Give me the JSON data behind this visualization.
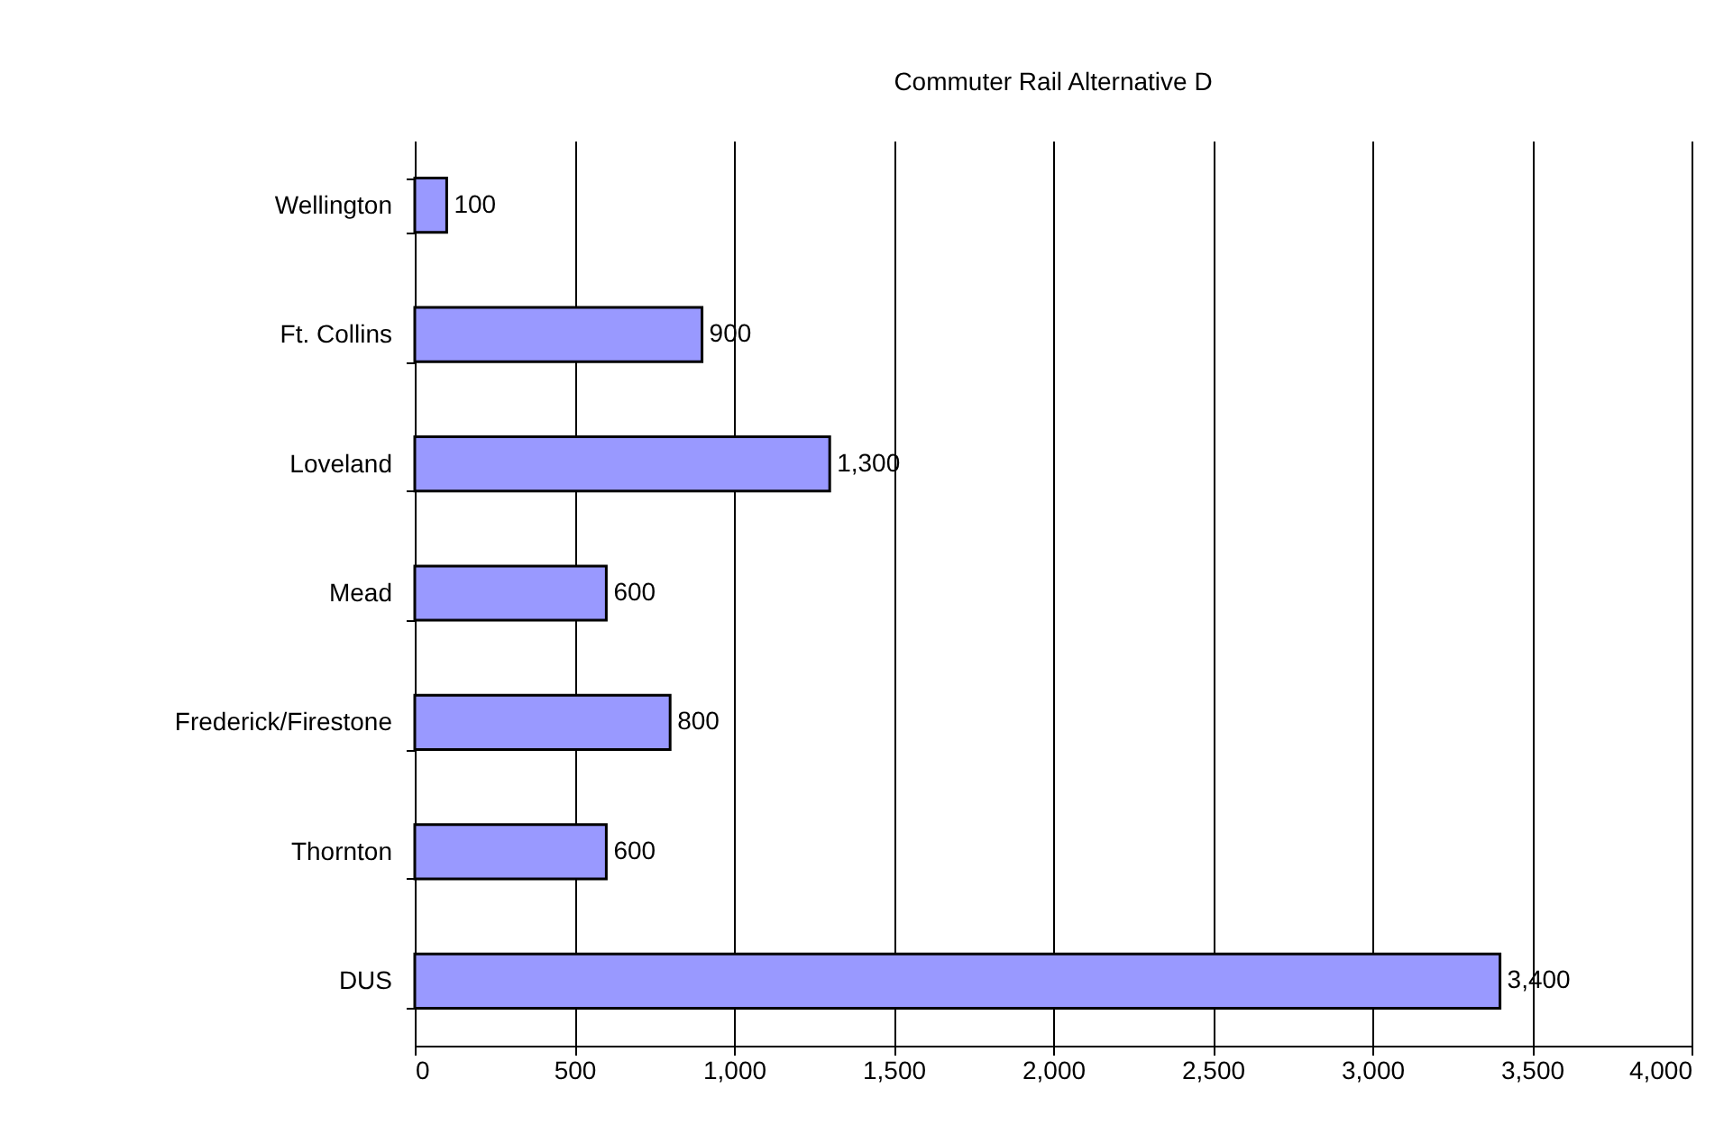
{
  "chart_data": {
    "type": "bar",
    "orientation": "horizontal",
    "title": "Commuter Rail Alternative D",
    "categories": [
      "Wellington",
      "Ft. Collins",
      "Loveland",
      "Mead",
      "Frederick/Firestone",
      "Thornton",
      "DUS"
    ],
    "values": [
      100,
      900,
      1300,
      600,
      800,
      600,
      3400
    ],
    "value_labels": [
      "100",
      "900",
      "1,300",
      "600",
      "800",
      "600",
      "3,400"
    ],
    "color": "#9999ff",
    "xlim": [
      0,
      4000
    ],
    "xticks": [
      0,
      500,
      {
        "value": 1000,
        "label": "1,000"
      },
      {
        "value": 1500,
        "label": "1,500"
      },
      {
        "value": 2000,
        "label": "2,000"
      },
      {
        "value": 2500,
        "label": "2,500"
      },
      {
        "value": 3000,
        "label": "3,000"
      },
      {
        "value": 3500,
        "label": "3,500"
      },
      {
        "value": 4000,
        "label": "4,000"
      }
    ],
    "grid": "x"
  }
}
